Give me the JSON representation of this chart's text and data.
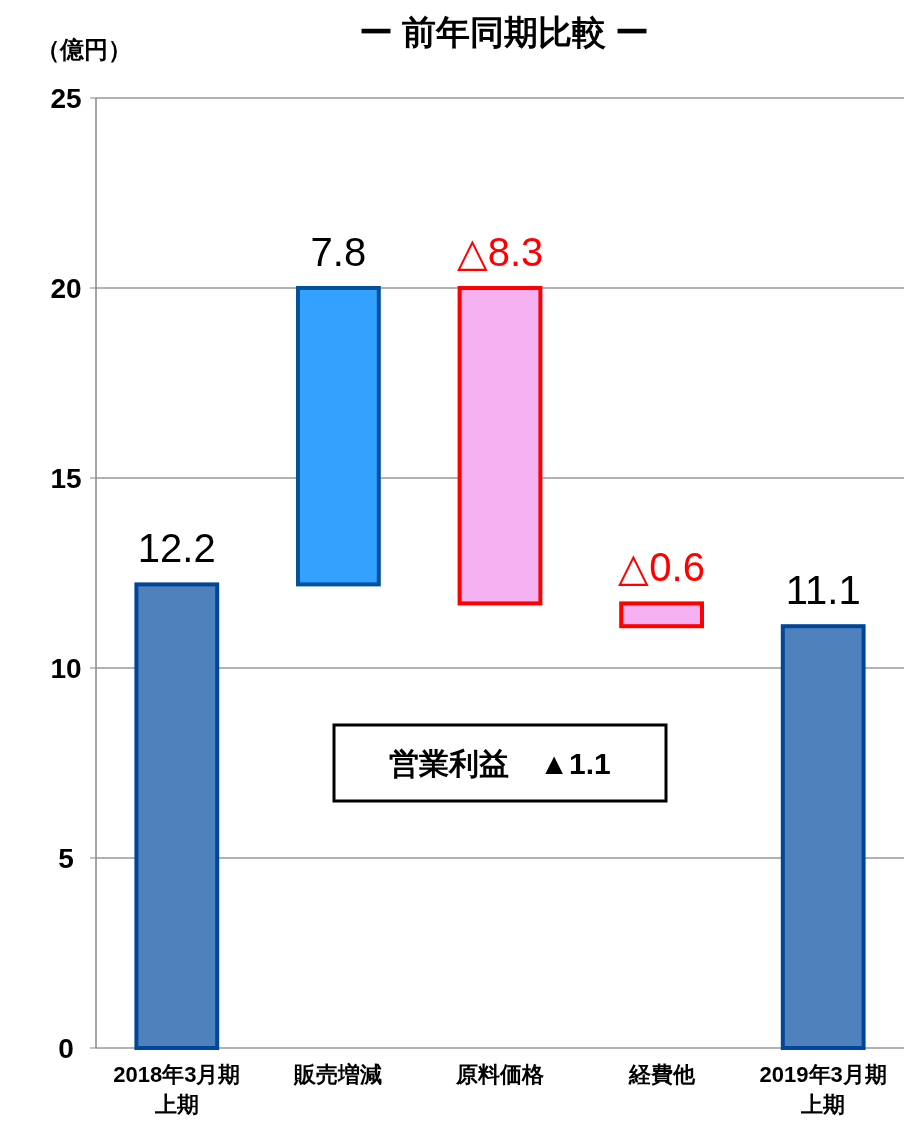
{
  "chart_data": {
    "type": "bar",
    "title": "ー 前年同期比較 ー",
    "ylabel": "（億円）",
    "categories": [
      "2018年3月期上期",
      "販売増減",
      "原料価格",
      "経費他",
      "2019年3月期上期"
    ],
    "values": [
      12.2,
      7.8,
      8.3,
      0.6,
      11.1
    ],
    "base": [
      0,
      12.2,
      11.7,
      11.1,
      0
    ],
    "colors": [
      "#4f81bd",
      "#33a1ff",
      "#f4b0f0",
      "#f4b0f0",
      "#4f81bd"
    ],
    "value_labels": [
      "12.2",
      "7.8",
      "△8.3",
      "△0.6",
      "11.1"
    ],
    "ylim": [
      0,
      25
    ],
    "yticks": [
      0,
      5,
      10,
      15,
      20,
      25
    ],
    "grid": "y",
    "annotations": [
      "営業利益　▲1.1"
    ]
  }
}
